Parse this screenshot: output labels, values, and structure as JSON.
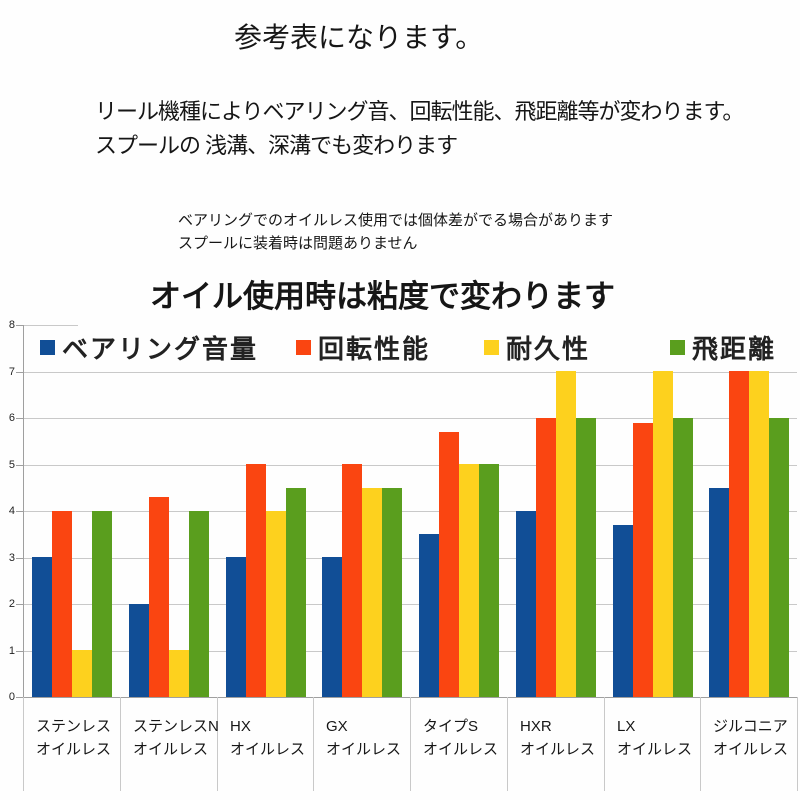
{
  "texts": {
    "title": "参考表になります。",
    "para_line1": "リール機種によりベアリング音、回転性能、飛距離等が変わります。",
    "para_line2": "スプールの 浅溝、深溝でも変わります",
    "note_line1": "ベアリングでのオイルレス使用では個体差がでる場合があります",
    "note_line2": "スプールに装着時は問題ありません",
    "subtitle": "オイル使用時は粘度で変わります"
  },
  "colors": {
    "bearing_noise_blue": "#114e96",
    "rotation_red": "#fa4511",
    "durability_yellow": "#fdd11e",
    "distance_green": "#5a9e1e",
    "gridline": "#c9c9c9",
    "axis": "#9f9f9f",
    "background": "#fefefe"
  },
  "chart_data": {
    "type": "bar",
    "title": "",
    "xlabel": "",
    "ylabel": "",
    "ylim": [
      0,
      8
    ],
    "yticks": [
      0,
      1,
      2,
      3,
      4,
      5,
      6,
      7,
      8
    ],
    "grid": true,
    "legend_position": "top",
    "categories": [
      {
        "line1": "ステンレス",
        "line2": "オイルレス"
      },
      {
        "line1": "ステンレスN",
        "line2": "オイルレス"
      },
      {
        "line1": "HX",
        "line2": "オイルレス"
      },
      {
        "line1": "GX",
        "line2": "オイルレス"
      },
      {
        "line1": "タイプS",
        "line2": "オイルレス"
      },
      {
        "line1": "HXR",
        "line2": "オイルレス"
      },
      {
        "line1": "LX",
        "line2": "オイルレス"
      },
      {
        "line1": "ジルコニア",
        "line2": "オイルレス"
      }
    ],
    "series": [
      {
        "name": "ベアリング音量",
        "color": "#114e96",
        "values": [
          3,
          2,
          3,
          3,
          3.5,
          4,
          3.7,
          4.5
        ]
      },
      {
        "name": "回転性能",
        "color": "#fa4511",
        "values": [
          4,
          4.3,
          5,
          5,
          5.7,
          6,
          5.9,
          7
        ]
      },
      {
        "name": "耐久性",
        "color": "#fdd11e",
        "values": [
          1,
          1,
          4,
          4.5,
          5,
          7,
          7,
          7
        ]
      },
      {
        "name": "飛距離",
        "color": "#5a9e1e",
        "values": [
          4,
          4,
          4.5,
          4.5,
          5,
          6,
          6,
          6
        ]
      }
    ]
  }
}
